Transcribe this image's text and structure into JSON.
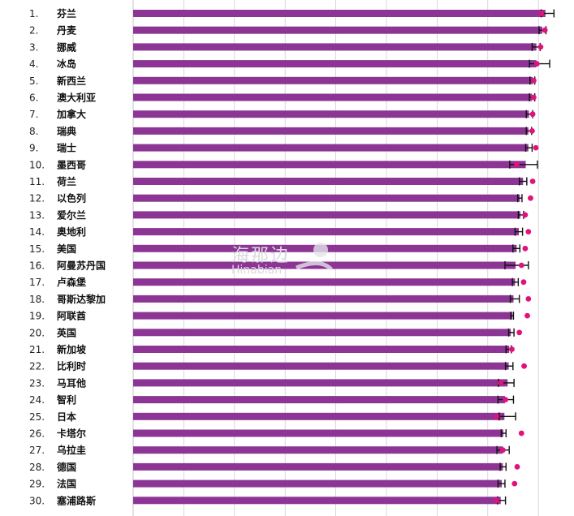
{
  "chart_data": {
    "type": "bar",
    "orientation": "horizontal",
    "colors": {
      "bar": "#8c3594",
      "dot": "#e0137c",
      "error": "#111111",
      "grid": "#cfcfd4"
    },
    "xlim": [
      0,
      8.2
    ],
    "grid": true,
    "categories": [
      "芬兰",
      "丹麦",
      "挪威",
      "冰岛",
      "新西兰",
      "澳大利亚",
      "加拿大",
      "瑞典",
      "瑞士",
      "墨西哥",
      "荷兰",
      "以色列",
      "爱尔兰",
      "奥地利",
      "美国",
      "阿曼苏丹国",
      "卢森堡",
      "哥斯达黎加",
      "阿联酋",
      "英国",
      "新加坡",
      "比利时",
      "马耳他",
      "智利",
      "日本",
      "卡塔尔",
      "乌拉圭",
      "德国",
      "法国",
      "塞浦路斯"
    ],
    "ranks": [
      "1.",
      "2.",
      "3.",
      "4.",
      "5.",
      "6.",
      "7.",
      "8.",
      "9.",
      "10.",
      "11.",
      "12.",
      "13.",
      "14.",
      "15.",
      "16.",
      "17.",
      "18.",
      "19.",
      "20.",
      "21.",
      "22.",
      "23.",
      "24.",
      "25.",
      "26.",
      "27.",
      "28.",
      "29.",
      "30."
    ],
    "series": [
      {
        "values": [
          7.74,
          7.68,
          7.57,
          7.57,
          7.5,
          7.49,
          7.43,
          7.42,
          7.42,
          7.37,
          7.32,
          7.26,
          7.27,
          7.24,
          7.2,
          7.18,
          7.17,
          7.14,
          7.12,
          7.09,
          7.06,
          7.05,
          7.03,
          6.98,
          6.97,
          6.95,
          6.94,
          6.94,
          6.92,
          6.9
        ]
      },
      {
        "values": [
          7.66,
          7.73,
          7.65,
          7.58,
          7.52,
          7.52,
          7.5,
          7.49,
          7.56,
          7.2,
          7.5,
          7.46,
          7.36,
          7.42,
          7.36,
          7.29,
          7.33,
          7.42,
          7.4,
          7.25,
          7.11,
          7.34,
          6.9,
          6.99,
          6.82,
          7.29,
          6.94,
          7.21,
          7.16,
          6.82
        ]
      }
    ],
    "error_bars": [
      [
        7.66,
        7.9
      ],
      [
        7.62,
        7.75
      ],
      [
        7.49,
        7.64
      ],
      [
        7.44,
        7.82
      ],
      [
        7.45,
        7.54
      ],
      [
        7.44,
        7.54
      ],
      [
        7.38,
        7.5
      ],
      [
        7.38,
        7.48
      ],
      [
        7.37,
        7.49
      ],
      [
        7.07,
        7.59
      ],
      [
        7.25,
        7.39
      ],
      [
        7.22,
        7.3
      ],
      [
        7.23,
        7.33
      ],
      [
        7.17,
        7.31
      ],
      [
        7.13,
        7.26
      ],
      [
        6.98,
        7.42
      ],
      [
        7.12,
        7.23
      ],
      [
        7.08,
        7.25
      ],
      [
        7.09,
        7.14
      ],
      [
        7.05,
        7.15
      ],
      [
        7.0,
        7.1
      ],
      [
        6.99,
        7.13
      ],
      [
        6.86,
        7.15
      ],
      [
        6.85,
        7.14
      ],
      [
        6.87,
        7.18
      ],
      [
        6.91,
        7.0
      ],
      [
        6.83,
        7.06
      ],
      [
        6.89,
        7.0
      ],
      [
        6.85,
        6.98
      ],
      [
        6.84,
        6.99
      ]
    ]
  },
  "watermark": {
    "text_cn": "海那边",
    "text_en": "Hinabian"
  }
}
